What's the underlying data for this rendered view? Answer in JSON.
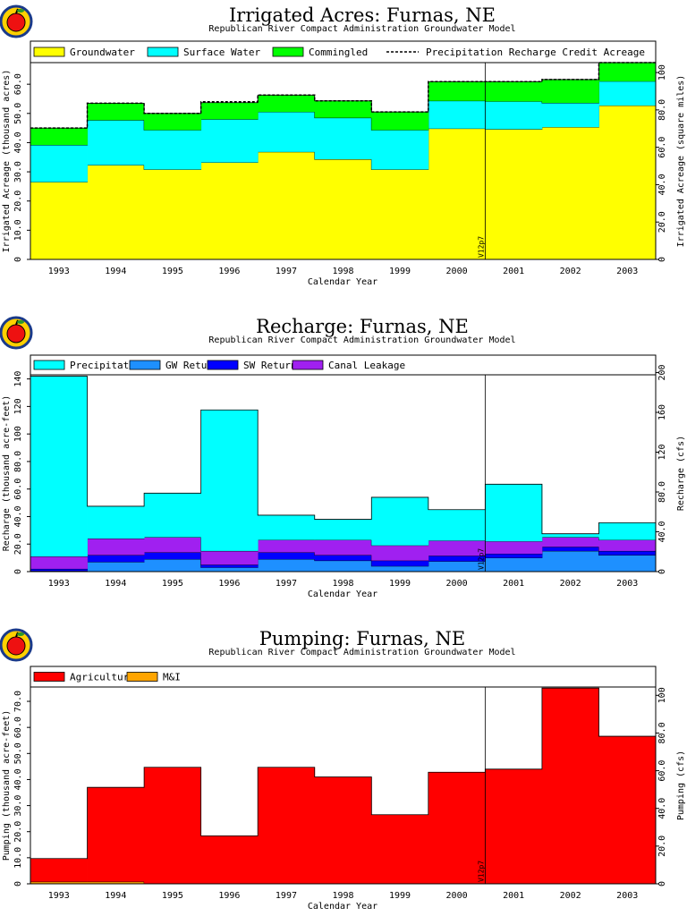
{
  "panels": [
    {
      "title": "Irrigated Acres: Furnas, NE",
      "subtitle": "Republican River Compact Administration Groundwater Model",
      "ylabel": "Irrigated Acreage (thousand acres)",
      "y2label": "Irrigated Acreage (square miles)",
      "xlabel": "Calendar Year",
      "marker": "V12p7"
    },
    {
      "title": "Recharge: Furnas, NE",
      "subtitle": "Republican River Compact Administration Groundwater Model",
      "ylabel": "Recharge (thousand acre-feet)",
      "y2label": "Recharge (cfs)",
      "xlabel": "Calendar Year",
      "marker": "V12p7"
    },
    {
      "title": "Pumping: Furnas, NE",
      "subtitle": "Republican River Compact Administration Groundwater Model",
      "ylabel": "Pumping (thousand acre-feet)",
      "y2label": "Pumping (cfs)",
      "xlabel": "Calendar Year",
      "marker": "V12p7"
    }
  ],
  "chart_data": [
    {
      "type": "area",
      "stacked": true,
      "categories": [
        "1993",
        "1994",
        "1995",
        "1996",
        "1997",
        "1998",
        "1999",
        "2000",
        "2001",
        "2002",
        "2003"
      ],
      "series": [
        {
          "name": "Groundwater",
          "color": "#ffff00",
          "values": [
            26.5,
            32.3,
            30.8,
            33.2,
            36.8,
            34.3,
            30.8,
            44.8,
            44.6,
            45.3,
            52.7
          ]
        },
        {
          "name": "Surface Water",
          "color": "#00ffff",
          "values": [
            12.7,
            15.4,
            13.5,
            14.8,
            13.7,
            14.2,
            13.5,
            9.5,
            9.5,
            8.3,
            8.3
          ]
        },
        {
          "name": "Commingled",
          "color": "#00ff00",
          "values": [
            5.8,
            5.8,
            5.7,
            5.7,
            5.8,
            5.8,
            6.2,
            6.6,
            6.8,
            8.0,
            6.4
          ]
        }
      ],
      "overlay": {
        "name": "Precipitation Recharge Credit Acreage",
        "style": "dashed",
        "values": [
          45.0,
          53.5,
          50.0,
          54.0,
          56.3,
          54.3,
          50.5,
          60.9,
          60.9,
          61.6,
          67.4
        ]
      },
      "ylim": [
        0,
        67.4
      ],
      "yticks": [
        "0",
        "10.0",
        "20.0",
        "30.0",
        "40.0",
        "50.0",
        "60.0"
      ],
      "y2ticks": [
        "0",
        "20.0",
        "40.0",
        "60.0",
        "80.0",
        "100"
      ],
      "y2ticks_values": [
        0,
        20,
        40,
        60,
        80,
        100
      ],
      "y2_per_y": 1.5625,
      "grid": false,
      "legend_position": "top",
      "marker_after": "2000"
    },
    {
      "type": "area",
      "stacked": true,
      "categories": [
        "1993",
        "1994",
        "1995",
        "1996",
        "1997",
        "1998",
        "1999",
        "2000",
        "2001",
        "2002",
        "2003"
      ],
      "series": [
        {
          "name": "GW Returns",
          "color": "#1e90ff",
          "values": [
            0.5,
            7.0,
            9.0,
            3.0,
            9.0,
            8.0,
            4.0,
            7.5,
            10.0,
            15.0,
            12.0
          ]
        },
        {
          "name": "SW Returns",
          "color": "#0000ff",
          "values": [
            1.5,
            5.0,
            5.0,
            2.0,
            5.0,
            4.0,
            4.0,
            4.0,
            3.0,
            3.0,
            3.0
          ]
        },
        {
          "name": "Canal Leakage",
          "color": "#a020f0",
          "values": [
            9.0,
            12.0,
            11.0,
            10.0,
            9.0,
            11.0,
            11.0,
            11.0,
            9.0,
            7.0,
            8.0
          ]
        },
        {
          "name": "Precipitation",
          "color": "#00ffff",
          "values": [
            131.0,
            23.5,
            32.0,
            102.5,
            18.0,
            15.0,
            35.0,
            22.5,
            41.5,
            2.5,
            12.5
          ]
        }
      ],
      "ylim": [
        0,
        143
      ],
      "yticks": [
        "0",
        "20.0",
        "40.0",
        "60.0",
        "80.0",
        "100",
        "120",
        "140"
      ],
      "y2ticks": [
        "0",
        "40.0",
        "80.0",
        "120",
        "160",
        "200"
      ],
      "y2ticks_values": [
        0,
        40,
        80,
        120,
        160,
        200
      ],
      "y2_per_y": 1.383,
      "grid": false,
      "legend_position": "top",
      "legend_order": [
        "Precipitation",
        "GW Returns",
        "SW Returns",
        "Canal Leakage"
      ],
      "marker_after": "2000"
    },
    {
      "type": "area",
      "stacked": true,
      "categories": [
        "1993",
        "1994",
        "1995",
        "1996",
        "1997",
        "1998",
        "1999",
        "2000",
        "2001",
        "2002",
        "2003"
      ],
      "series": [
        {
          "name": "M&I",
          "color": "#ffa500",
          "values": [
            0.8,
            0.8,
            0,
            0,
            0,
            0,
            0,
            0,
            0,
            0,
            0
          ]
        },
        {
          "name": "Agricultural",
          "color": "#ff0000",
          "values": [
            8.9,
            36.2,
            44.7,
            18.4,
            44.7,
            41.0,
            26.5,
            42.8,
            44.0,
            75.1,
            56.6
          ]
        }
      ],
      "ylim": [
        0,
        75.5
      ],
      "yticks": [
        "0",
        "10.0",
        "20.0",
        "30.0",
        "40.0",
        "50.0",
        "60.0",
        "70.0"
      ],
      "y2ticks": [
        "0",
        "20.0",
        "40.0",
        "60.0",
        "80.0",
        "100"
      ],
      "y2ticks_values": [
        0,
        20,
        40,
        60,
        80,
        100
      ],
      "y2_per_y": 1.383,
      "grid": false,
      "legend_position": "top",
      "legend_order": [
        "Agricultural",
        "M&I"
      ],
      "marker_after": "2000"
    }
  ]
}
